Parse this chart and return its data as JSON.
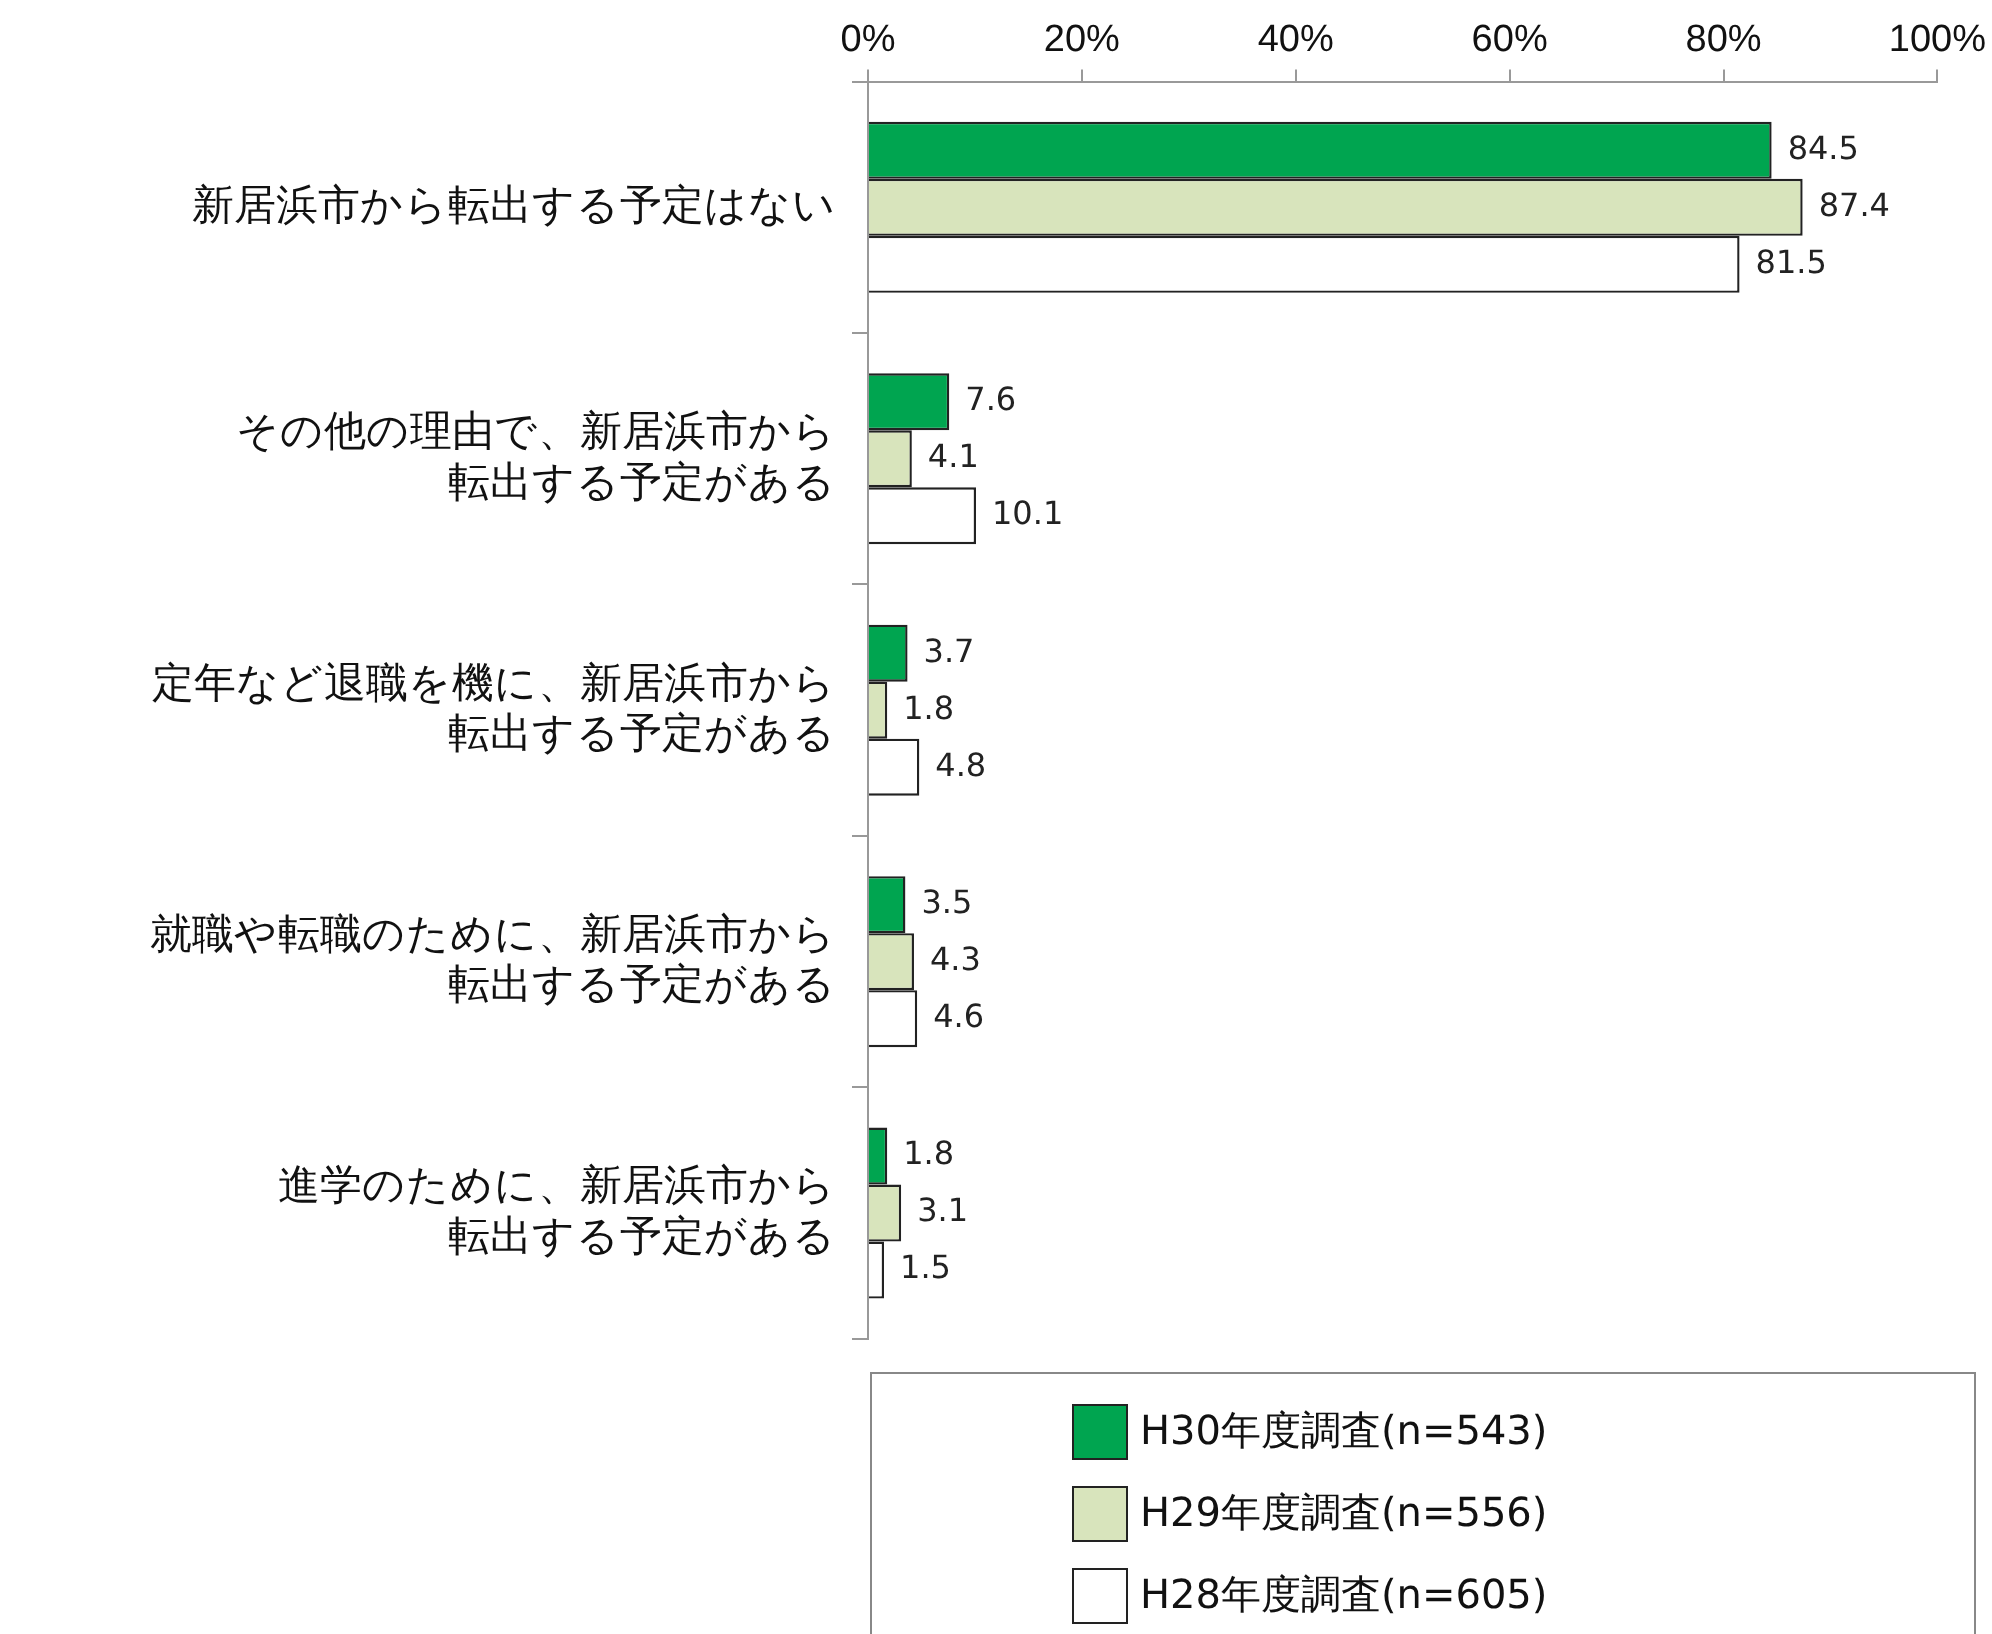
{
  "chart_data": {
    "type": "bar",
    "orientation": "horizontal",
    "categories": [
      "新居浜市から転出する予定はない",
      "その他の理由で、新居浜市から転出する予定がある",
      "定年など退職を機に、新居浜市から転出する予定がある",
      "就職や転職のために、新居浜市から転出する予定がある",
      "進学のために、新居浜市から転出する予定がある"
    ],
    "series": [
      {
        "name": "H30年度調査(n=543)",
        "color": "#00a550",
        "values": [
          84.5,
          7.6,
          3.7,
          3.5,
          1.8
        ]
      },
      {
        "name": "H29年度調査(n=556)",
        "color": "#d8e4bc",
        "values": [
          87.4,
          4.1,
          1.8,
          4.3,
          3.1
        ]
      },
      {
        "name": "H28年度調査(n=605)",
        "color": "#ffffff",
        "values": [
          81.5,
          10.1,
          4.8,
          4.6,
          1.5
        ]
      }
    ],
    "xlim": [
      0,
      100
    ],
    "xticks": [
      {
        "value": 0,
        "label": "0%"
      },
      {
        "value": 20,
        "label": "20%"
      },
      {
        "value": 40,
        "label": "40%"
      },
      {
        "value": 60,
        "label": "60%"
      },
      {
        "value": 80,
        "label": "80%"
      },
      {
        "value": 100,
        "label": "100%"
      }
    ],
    "data_labels": true,
    "grid": false,
    "legend": "bottom"
  }
}
